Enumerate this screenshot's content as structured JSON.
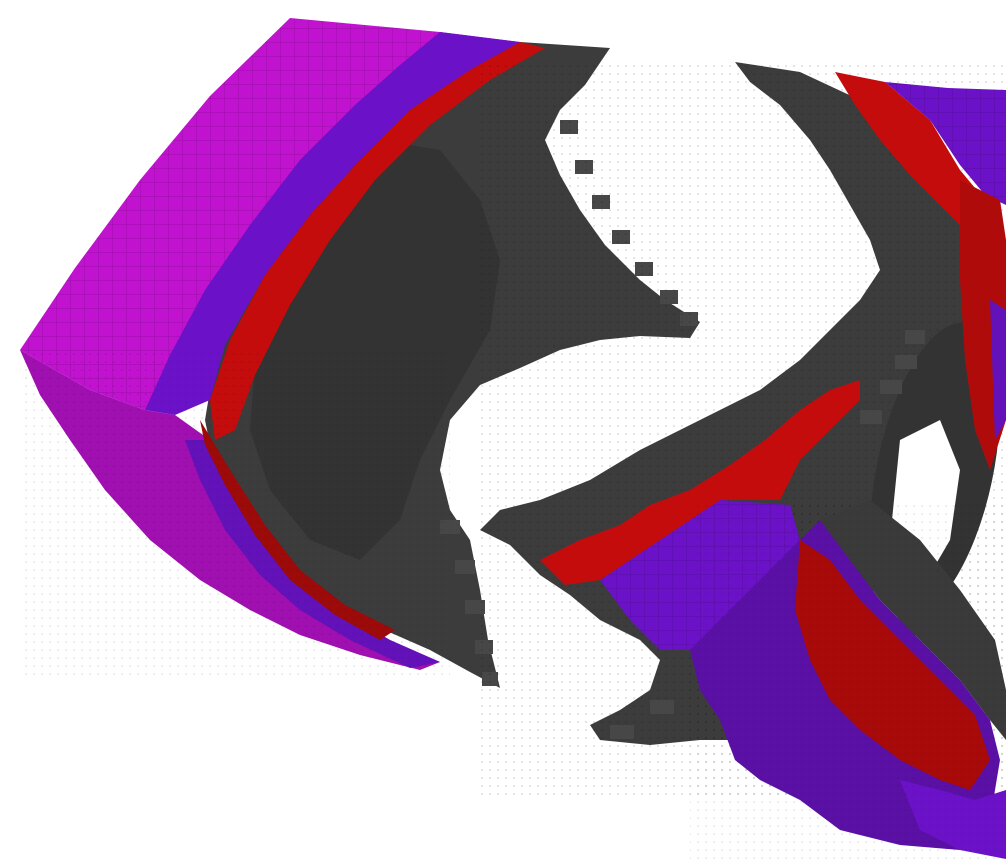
{
  "scene": {
    "background": "#ffffff",
    "colors": {
      "magenta": "#c012cf",
      "magenta_dark": "#a60fb3",
      "violet": "#6b12c8",
      "violet_dark": "#5510a5",
      "red": "#c40c0c",
      "red_dark": "#8c0808",
      "gray": "#3c3c3c",
      "gray_dark": "#2e2e2e",
      "gray_light": "#4a4a4a"
    }
  }
}
